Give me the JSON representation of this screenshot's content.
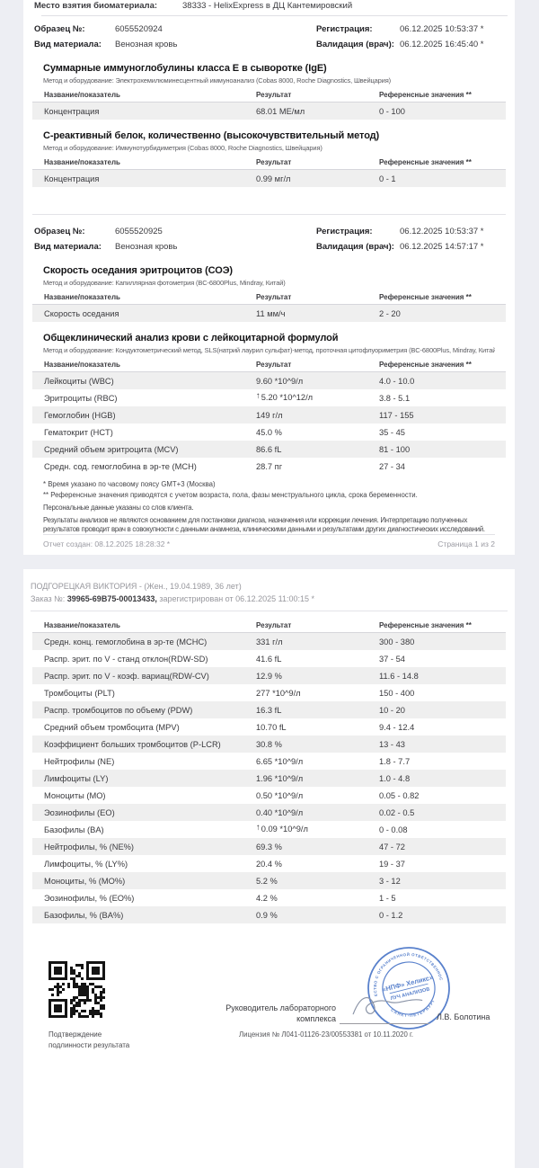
{
  "colors": {
    "page_bg": "#edeef3",
    "row_shade": "#efefef",
    "stamp_blue": "#3d6cc4"
  },
  "table_headers": {
    "name": "Название/показатель",
    "result": "Результат",
    "ref": "Референсные значения **"
  },
  "page1": {
    "top_label": "Место взятия биоматериала:",
    "top_value": "38333 - HelixExpress в ДЦ Кантемировский",
    "samples": [
      {
        "sample_label": "Образец №:",
        "sample_value": "6055520924",
        "material_label": "Вид материала:",
        "material_value": "Венозная кровь",
        "reg_label": "Регистрация:",
        "reg_value": "06.12.2025 10:53:37 *",
        "valid_label": "Валидация (врач):",
        "valid_value": "06.12.2025 16:45:40 *"
      },
      {
        "sample_label": "Образец №:",
        "sample_value": "6055520925",
        "material_label": "Вид материала:",
        "material_value": "Венозная кровь",
        "reg_label": "Регистрация:",
        "reg_value": "06.12.2025 10:53:37 *",
        "valid_label": "Валидация (врач):",
        "valid_value": "06.12.2025 14:57:17 *"
      }
    ],
    "sections": [
      {
        "title": "Суммарные иммуноглобулины класса E в сыворотке (IgE)",
        "method": "Метод и оборудование: Электрохемилюминесцентный иммуноанализ (Cobas 8000, Roche Diagnostics, Швейцария)",
        "rows": [
          {
            "name": "Концентрация",
            "result": "68.01 МЕ/мл",
            "ref": "0 - 100",
            "flag": ""
          }
        ]
      },
      {
        "title": "С-реактивный белок, количественно (высокочувствительный метод)",
        "method": "Метод и оборудование: Иммунотурбидиметрия (Cobas 8000, Roche Diagnostics, Швейцария)",
        "rows": [
          {
            "name": "Концентрация",
            "result": "0.99 мг/л",
            "ref": "0 - 1",
            "flag": ""
          }
        ]
      },
      {
        "title": "Скорость оседания эритроцитов (СОЭ)",
        "method": "Метод и оборудование: Капиллярная фотометрия (BC-6800Plus, Mindray, Китай)",
        "rows": [
          {
            "name": "Скорость оседания",
            "result": "11 мм/ч",
            "ref": "2 - 20",
            "flag": ""
          }
        ]
      },
      {
        "title": "Общеклинический анализ крови с лейкоцитарной формулой",
        "method": "Метод и оборудование: Кондуктометрический метод, SLS(натрий лаурил сульфат)-метод, проточная цитофлуориметрия (BC-6800Plus, Mindray, Китай)",
        "rows": [
          {
            "name": "Лейкоциты (WBC)",
            "result": "9.60 *10^9/л",
            "ref": "4.0 - 10.0",
            "flag": ""
          },
          {
            "name": "Эритроциты (RBC)",
            "result": "5.20 *10^12/л",
            "ref": "3.8 - 5.1",
            "flag": "↑"
          },
          {
            "name": "Гемоглобин (HGB)",
            "result": "149 г/л",
            "ref": "117 - 155",
            "flag": ""
          },
          {
            "name": "Гематокрит (HCT)",
            "result": "45.0 %",
            "ref": "35 - 45",
            "flag": ""
          },
          {
            "name": "Средний объем эритроцита (MCV)",
            "result": "86.6 fL",
            "ref": "81 - 100",
            "flag": ""
          },
          {
            "name": "Средн. сод. гемоглобина в эр-те (MCH)",
            "result": "28.7 пг",
            "ref": "27 - 34",
            "flag": ""
          }
        ]
      }
    ],
    "footnote1": "* Время указано по часовому поясу GMT+3 (Москва)",
    "footnote2": "** Референсные значения приводятся с учетом возраста, пола, фазы менструального цикла, срока беременности.",
    "personal_note": "Персональные данные указаны со слов клиента.",
    "disclaimer": "Результаты анализов не являются основанием для постановки диагноза, назначения или коррекции лечения. Интерпретацию полученных результатов проводит врач в совокупности с данными анамнеза, клиническими данными и результатами других диагностических исследований.",
    "footer_created": "Отчет создан: 08.12.2025 18:28:32 *",
    "footer_page": "Страница 1 из 2"
  },
  "page2": {
    "patient_line": "ПОДГОРЕЦКАЯ ВИКТОРИЯ - (Жен., 19.04.1989, 36 лет)",
    "order_label": "Заказ №:",
    "order_number": "39965-69В75-00013433,",
    "order_rest": "зарегистрирован от 06.12.2025 11:00:15 *",
    "rows": [
      {
        "name": "Средн. конц. гемоглобина в эр-те (MCHC)",
        "result": "331 г/л",
        "ref": "300 - 380",
        "flag": ""
      },
      {
        "name": "Распр. эрит. по V - станд отклон(RDW-SD)",
        "result": "41.6 fL",
        "ref": "37 - 54",
        "flag": ""
      },
      {
        "name": "Распр. эрит. по V - коэф. вариац(RDW-CV)",
        "result": "12.9 %",
        "ref": "11.6 - 14.8",
        "flag": ""
      },
      {
        "name": "Тромбоциты (PLT)",
        "result": "277 *10^9/л",
        "ref": "150 - 400",
        "flag": ""
      },
      {
        "name": "Распр. тромбоцитов по объему (PDW)",
        "result": "16.3 fL",
        "ref": "10 - 20",
        "flag": ""
      },
      {
        "name": "Средний объем тромбоцита (MPV)",
        "result": "10.70 fL",
        "ref": "9.4 - 12.4",
        "flag": ""
      },
      {
        "name": "Коэффициент больших тромбоцитов (P-LCR)",
        "result": "30.8 %",
        "ref": "13 - 43",
        "flag": ""
      },
      {
        "name": "Нейтрофилы (NE)",
        "result": "6.65 *10^9/л",
        "ref": "1.8 - 7.7",
        "flag": ""
      },
      {
        "name": "Лимфоциты (LY)",
        "result": "1.96 *10^9/л",
        "ref": "1.0 - 4.8",
        "flag": ""
      },
      {
        "name": "Моноциты (MO)",
        "result": "0.50 *10^9/л",
        "ref": "0.05 - 0.82",
        "flag": ""
      },
      {
        "name": "Эозинофилы (EO)",
        "result": "0.40 *10^9/л",
        "ref": "0.02 - 0.5",
        "flag": ""
      },
      {
        "name": "Базофилы (BA)",
        "result": "0.09 *10^9/л",
        "ref": "0 - 0.08",
        "flag": "↑"
      },
      {
        "name": "Нейтрофилы, % (NE%)",
        "result": "69.3 %",
        "ref": "47 - 72",
        "flag": ""
      },
      {
        "name": "Лимфоциты, % (LY%)",
        "result": "20.4 %",
        "ref": "19 - 37",
        "flag": ""
      },
      {
        "name": "Моноциты, % (MO%)",
        "result": "5.2 %",
        "ref": "3 - 12",
        "flag": ""
      },
      {
        "name": "Эозинофилы, % (EO%)",
        "result": "4.2 %",
        "ref": "1 - 5",
        "flag": ""
      },
      {
        "name": "Базофилы, % (BA%)",
        "result": "0.9 %",
        "ref": "0 - 1.2",
        "flag": ""
      }
    ],
    "qr_caption_line1": "Подтверждение",
    "qr_caption_line2": "подлинности результата",
    "signature_role_line1": "Руководитель лабораторного",
    "signature_role_line2": "комплекса",
    "signature_name": "Л.В. Болотина",
    "license": "Лицензия № Л041-01126-23/00553381 от 10.11.2020 г.",
    "stamp": {
      "ring_top": "ОБЩЕСТВО С ОГРАНИЧЕННОЙ ОТВЕТСТВЕННОСТЬЮ",
      "ring_bottom": "САНКТ-ПЕТЕРБУРГ",
      "center_line1": "«НПФ» Хеликс»",
      "center_line2": "ЛУЧ АНАЛИЗОВ"
    }
  }
}
